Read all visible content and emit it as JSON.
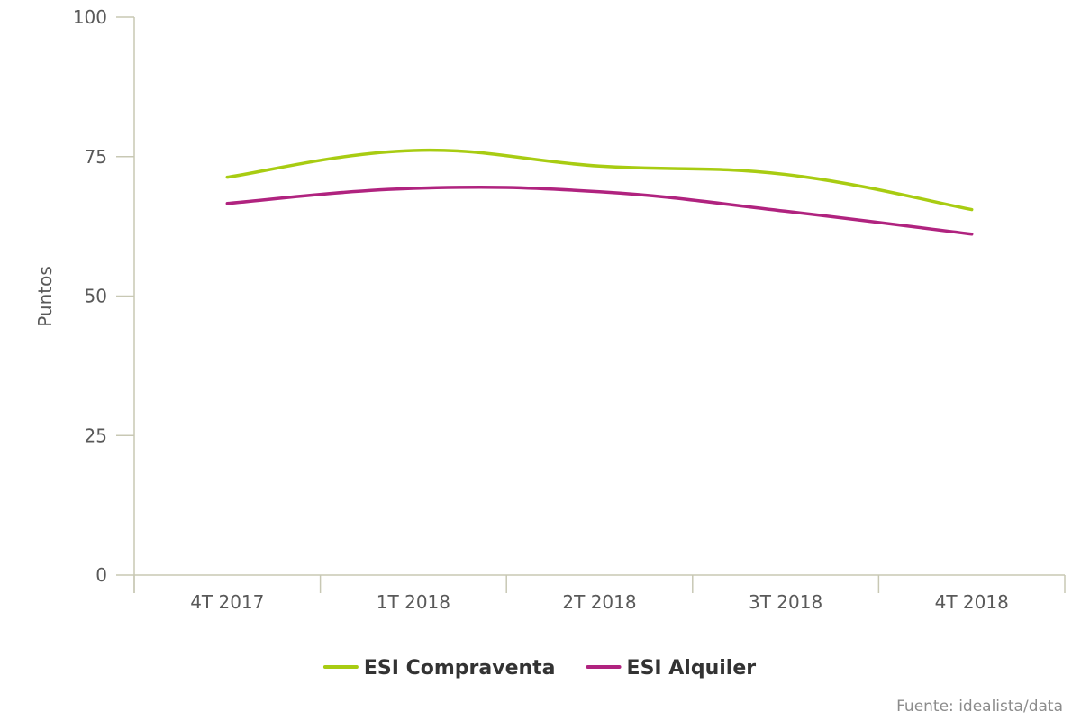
{
  "chart_data": {
    "type": "line",
    "title": "",
    "xlabel": "",
    "ylabel": "Puntos",
    "ylim": [
      0,
      100
    ],
    "yticks": [
      0,
      25,
      50,
      75,
      100
    ],
    "categories": [
      "4T 2017",
      "1T 2018",
      "2T 2018",
      "3T 2018",
      "4T 2018"
    ],
    "series": [
      {
        "name": "ESI Compraventa",
        "color": "#a8cc12",
        "values": [
          71.3,
          76.1,
          73.3,
          71.8,
          65.5
        ]
      },
      {
        "name": "ESI Alquiler",
        "color": "#b0237f",
        "values": [
          66.6,
          69.3,
          68.7,
          65.2,
          61.1
        ]
      }
    ],
    "legend_position": "bottom-center",
    "source": "Fuente: idealista/data"
  }
}
